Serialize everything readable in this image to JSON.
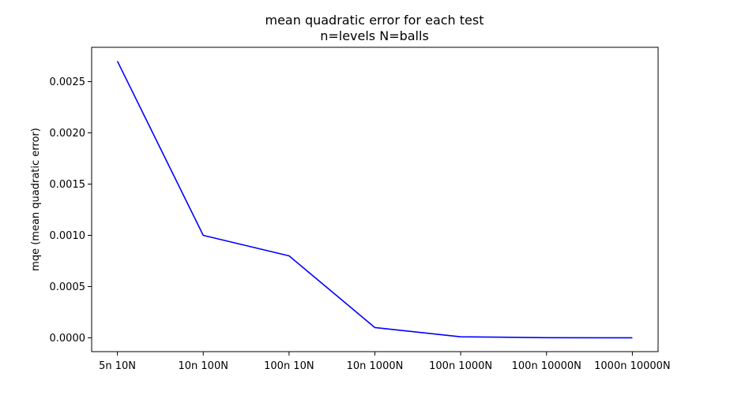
{
  "chart_data": {
    "type": "line",
    "title": "mean quadratic error for each test",
    "subtitle": "n=levels N=balls",
    "xlabel": "",
    "ylabel": "mqe (mean quadratic error)",
    "categories": [
      "5n 10N",
      "10n 100N",
      "100n 10N",
      "10n 1000N",
      "100n 1000N",
      "100n 10000N",
      "1000n 10000N"
    ],
    "series": [
      {
        "color": "#0000ff",
        "values": [
          0.0027,
          0.001,
          0.0008,
          0.0001,
          1e-05,
          1e-06,
          1e-07
        ]
      }
    ],
    "yticks": [
      "0.0000",
      "0.0005",
      "0.0010",
      "0.0015",
      "0.0020",
      "0.0025"
    ],
    "ylim": [
      -0.000135,
      0.002835
    ],
    "grid": false,
    "legend": "none"
  }
}
